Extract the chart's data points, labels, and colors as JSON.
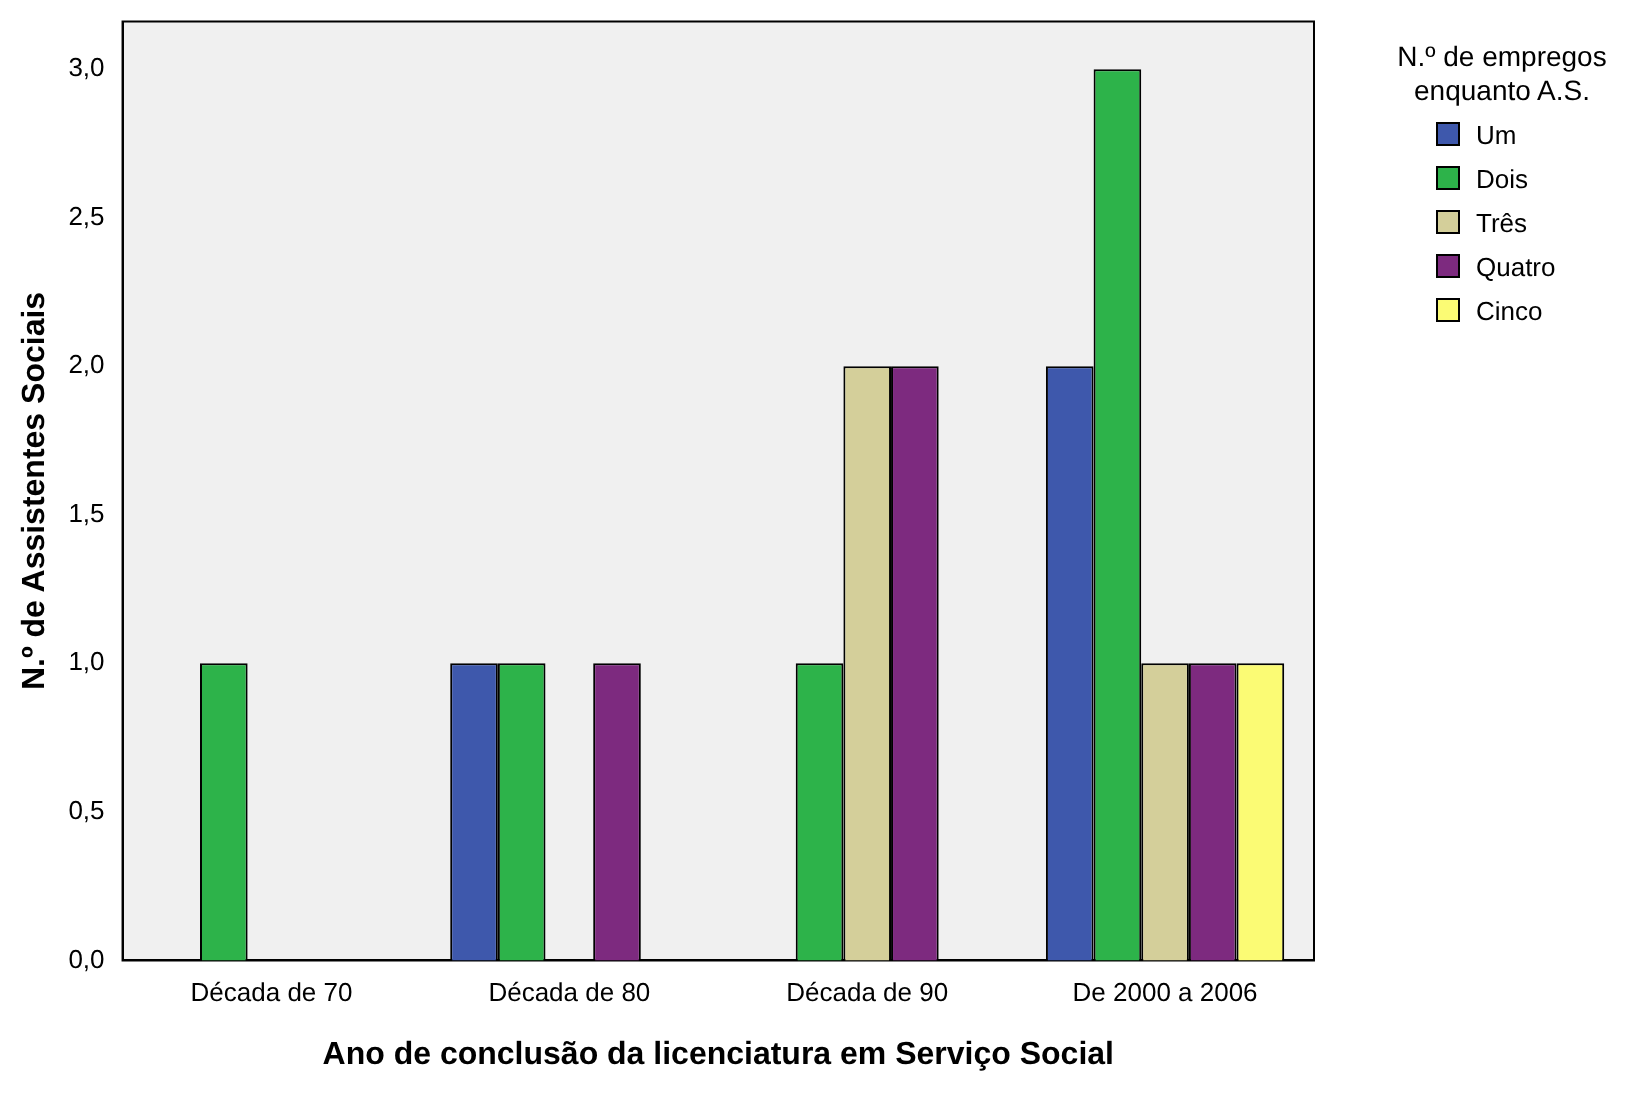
{
  "chart_data": {
    "type": "bar",
    "xlabel": "Ano de conclusão da licenciatura em Serviço Social",
    "ylabel": "N.º de Assistentes Sociais",
    "legend_title": "N.º de empregos enquanto A.S.",
    "categories": [
      "Década de 70",
      "Década de 80",
      "Década de 90",
      "De 2000 a 2006"
    ],
    "series": [
      {
        "name": "Um",
        "color": "#3e58ac",
        "values": [
          0,
          1,
          0,
          2
        ]
      },
      {
        "name": "Dois",
        "color": "#2db34a",
        "values": [
          1,
          1,
          1,
          3
        ]
      },
      {
        "name": "Três",
        "color": "#d4cf9a",
        "values": [
          0,
          0,
          2,
          1
        ]
      },
      {
        "name": "Quatro",
        "color": "#7d2a7f",
        "values": [
          0,
          1,
          2,
          1
        ]
      },
      {
        "name": "Cinco",
        "color": "#fbfb74",
        "values": [
          0,
          0,
          0,
          1
        ]
      }
    ],
    "ylim": [
      0,
      3.16
    ],
    "yticks": [
      {
        "value": 0,
        "label": "0,0"
      },
      {
        "value": 0.5,
        "label": "0,5"
      },
      {
        "value": 1,
        "label": "1,0"
      },
      {
        "value": 1.5,
        "label": "1,5"
      },
      {
        "value": 2,
        "label": "2,0"
      },
      {
        "value": 2.5,
        "label": "2,5"
      },
      {
        "value": 3,
        "label": "3,0"
      }
    ],
    "grid": false,
    "legend": "right"
  }
}
